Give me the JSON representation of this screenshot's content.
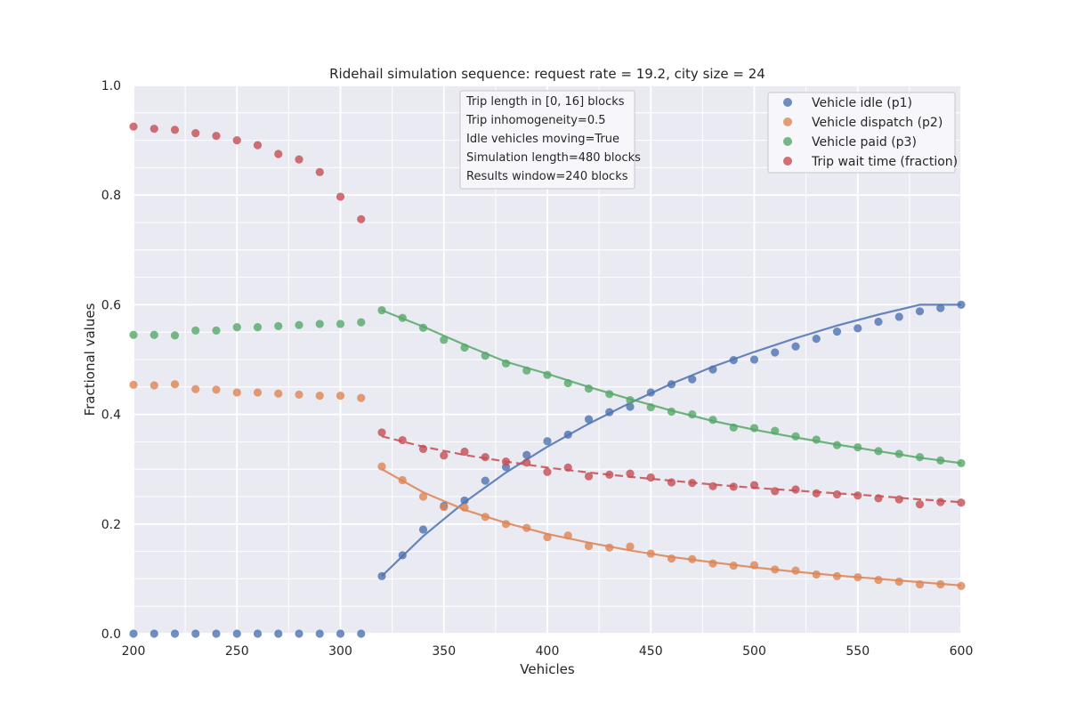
{
  "chart_data": {
    "type": "scatter",
    "title": "Ridehail simulation sequence: request rate = 19.2, city size = 24",
    "xlabel": "Vehicles",
    "ylabel": "Fractional values",
    "xlim": [
      200,
      600
    ],
    "ylim": [
      0.0,
      1.0
    ],
    "xticks": [
      "200",
      "250",
      "300",
      "350",
      "400",
      "450",
      "500",
      "550",
      "600"
    ],
    "yticks": [
      "0.0",
      "0.2",
      "0.4",
      "0.6",
      "0.8",
      "1.0"
    ],
    "grid": true,
    "legend_position": "top-right",
    "annotation": [
      "Trip length in [0, 16] blocks",
      "Trip inhomogeneity=0.5",
      "Idle vehicles moving=True",
      "Simulation length=480 blocks",
      "Results window=240 blocks"
    ],
    "series": [
      {
        "name": "Vehicle idle (p1)",
        "color": "#4c72b0",
        "x": [
          200,
          210,
          220,
          230,
          240,
          250,
          260,
          270,
          280,
          290,
          300,
          310,
          320,
          330,
          340,
          350,
          360,
          370,
          380,
          390,
          400,
          410,
          420,
          430,
          440,
          450,
          460,
          470,
          480,
          490,
          500,
          510,
          520,
          530,
          540,
          550,
          560,
          570,
          580,
          590,
          600
        ],
        "y": [
          0.0,
          0.0,
          0.0,
          0.0,
          0.0,
          0.0,
          0.0,
          0.0,
          0.0,
          0.0,
          0.0,
          0.0,
          0.105,
          0.143,
          0.19,
          0.233,
          0.243,
          0.279,
          0.304,
          0.326,
          0.351,
          0.363,
          0.391,
          0.404,
          0.414,
          0.44,
          0.455,
          0.464,
          0.482,
          0.499,
          0.5,
          0.513,
          0.524,
          0.538,
          0.551,
          0.557,
          0.569,
          0.578,
          0.588,
          0.594,
          0.6
        ],
        "fit": {
          "x": [
            320,
            340,
            360,
            380,
            400,
            420,
            440,
            460,
            480,
            500,
            520,
            540,
            560,
            580,
            600
          ],
          "y": [
            0.105,
            0.178,
            0.24,
            0.294,
            0.341,
            0.383,
            0.421,
            0.456,
            0.487,
            0.514,
            0.539,
            0.562,
            0.582,
            0.6,
            0.6
          ]
        }
      },
      {
        "name": "Vehicle dispatch (p2)",
        "color": "#dd8452",
        "x": [
          200,
          210,
          220,
          230,
          240,
          250,
          260,
          270,
          280,
          290,
          300,
          310,
          320,
          330,
          340,
          350,
          360,
          370,
          380,
          390,
          400,
          410,
          420,
          430,
          440,
          450,
          460,
          470,
          480,
          490,
          500,
          510,
          520,
          530,
          540,
          550,
          560,
          570,
          580,
          590,
          600
        ],
        "y": [
          0.454,
          0.453,
          0.455,
          0.446,
          0.445,
          0.44,
          0.44,
          0.438,
          0.436,
          0.434,
          0.434,
          0.43,
          0.305,
          0.28,
          0.25,
          0.231,
          0.23,
          0.213,
          0.2,
          0.193,
          0.176,
          0.179,
          0.16,
          0.157,
          0.159,
          0.146,
          0.137,
          0.136,
          0.128,
          0.124,
          0.125,
          0.117,
          0.115,
          0.108,
          0.105,
          0.103,
          0.098,
          0.095,
          0.09,
          0.09,
          0.087
        ],
        "fit": {
          "x": [
            320,
            340,
            360,
            380,
            400,
            420,
            440,
            460,
            480,
            500,
            520,
            540,
            560,
            580,
            600
          ],
          "y": [
            0.3,
            0.258,
            0.226,
            0.202,
            0.182,
            0.166,
            0.152,
            0.14,
            0.13,
            0.121,
            0.113,
            0.106,
            0.1,
            0.094,
            0.088
          ]
        }
      },
      {
        "name": "Vehicle paid (p3)",
        "color": "#55a868",
        "x": [
          200,
          210,
          220,
          230,
          240,
          250,
          260,
          270,
          280,
          290,
          300,
          310,
          320,
          330,
          340,
          350,
          360,
          370,
          380,
          390,
          400,
          410,
          420,
          430,
          440,
          450,
          460,
          470,
          480,
          490,
          500,
          510,
          520,
          530,
          540,
          550,
          560,
          570,
          580,
          590,
          600
        ],
        "y": [
          0.545,
          0.545,
          0.544,
          0.553,
          0.553,
          0.559,
          0.559,
          0.561,
          0.563,
          0.565,
          0.565,
          0.568,
          0.59,
          0.576,
          0.558,
          0.536,
          0.522,
          0.507,
          0.493,
          0.48,
          0.472,
          0.457,
          0.447,
          0.437,
          0.426,
          0.413,
          0.405,
          0.4,
          0.39,
          0.376,
          0.375,
          0.37,
          0.36,
          0.354,
          0.344,
          0.34,
          0.333,
          0.328,
          0.322,
          0.316,
          0.311
        ],
        "fit": {
          "x": [
            320,
            340,
            360,
            380,
            400,
            420,
            440,
            460,
            480,
            500,
            520,
            540,
            560,
            580,
            600
          ],
          "y": [
            0.59,
            0.56,
            0.527,
            0.496,
            0.474,
            0.45,
            0.428,
            0.407,
            0.388,
            0.372,
            0.358,
            0.345,
            0.333,
            0.321,
            0.311
          ]
        }
      },
      {
        "name": "Trip wait time (fraction)",
        "color": "#c44e52",
        "x": [
          200,
          210,
          220,
          230,
          240,
          250,
          260,
          270,
          280,
          290,
          300,
          310,
          320,
          330,
          340,
          350,
          360,
          370,
          380,
          390,
          400,
          410,
          420,
          430,
          440,
          450,
          460,
          470,
          480,
          490,
          500,
          510,
          520,
          530,
          540,
          550,
          560,
          570,
          580,
          590,
          600
        ],
        "y": [
          0.925,
          0.921,
          0.919,
          0.913,
          0.908,
          0.9,
          0.891,
          0.875,
          0.865,
          0.842,
          0.797,
          0.756,
          0.367,
          0.353,
          0.337,
          0.325,
          0.332,
          0.322,
          0.314,
          0.312,
          0.295,
          0.303,
          0.287,
          0.29,
          0.292,
          0.285,
          0.276,
          0.275,
          0.269,
          0.268,
          0.271,
          0.26,
          0.263,
          0.256,
          0.254,
          0.252,
          0.247,
          0.245,
          0.236,
          0.24,
          0.239
        ],
        "fit": {
          "x": [
            320,
            340,
            360,
            380,
            400,
            420,
            440,
            460,
            480,
            500,
            520,
            540,
            560,
            580,
            600
          ],
          "y": [
            0.36,
            0.341,
            0.326,
            0.314,
            0.303,
            0.294,
            0.286,
            0.279,
            0.272,
            0.266,
            0.261,
            0.256,
            0.251,
            0.245,
            0.24
          ]
        }
      }
    ]
  }
}
